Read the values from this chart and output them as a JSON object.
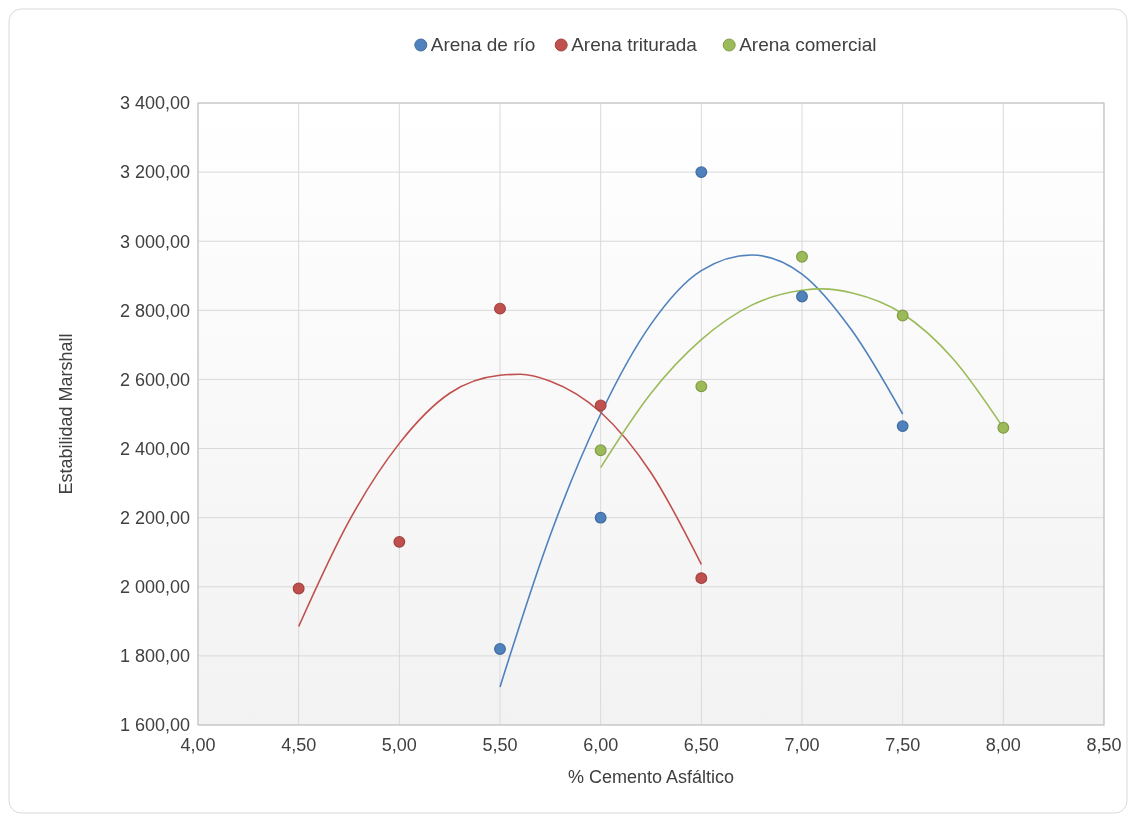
{
  "chart_data": {
    "type": "scatter",
    "xlabel": "% Cemento Asfáltico",
    "ylabel": "Estabilidad Marshall",
    "legend": "top",
    "grid": true,
    "marker": "circle",
    "xlim": [
      4,
      8.5
    ],
    "xticks": [
      {
        "value": 4,
        "label": "4,00"
      },
      {
        "value": 4.5,
        "label": "4,50"
      },
      {
        "value": 5,
        "label": "5,00"
      },
      {
        "value": 5.5,
        "label": "5,50"
      },
      {
        "value": 6,
        "label": "6,00"
      },
      {
        "value": 6.5,
        "label": "6,50"
      },
      {
        "value": 7,
        "label": "7,00"
      },
      {
        "value": 7.5,
        "label": "7,50"
      },
      {
        "value": 8,
        "label": "8,00"
      },
      {
        "value": 8.5,
        "label": "8,50"
      }
    ],
    "ylim": [
      1600,
      3400
    ],
    "yticks": [
      {
        "value": 1600,
        "label": "1 600,00"
      },
      {
        "value": 1800,
        "label": "1 800,00"
      },
      {
        "value": 2000,
        "label": "2 000,00"
      },
      {
        "value": 2200,
        "label": "2 200,00"
      },
      {
        "value": 2400,
        "label": "2 400,00"
      },
      {
        "value": 2600,
        "label": "2 600,00"
      },
      {
        "value": 2800,
        "label": "2 800,00"
      },
      {
        "value": 3000,
        "label": "3 000,00"
      },
      {
        "value": 3200,
        "label": "3 200,00"
      },
      {
        "value": 3400,
        "label": "3 400,00"
      }
    ],
    "series": [
      {
        "name": "Arena de río",
        "color": "#4f81bd",
        "x": [
          5.5,
          6,
          6.5,
          7,
          7.5
        ],
        "values": [
          1820,
          2200,
          3200,
          2840,
          2465
        ]
      },
      {
        "name": "Arena triturada",
        "color": "#c0504d",
        "x": [
          4.5,
          5,
          5.5,
          6,
          6.5
        ],
        "values": [
          1995,
          2130,
          2805,
          2525,
          2025
        ]
      },
      {
        "name": "Arena comercial",
        "color": "#9bbb59",
        "x": [
          6,
          6.5,
          7,
          7.5,
          8
        ],
        "values": [
          2395,
          2580,
          2955,
          2785,
          2460
        ]
      },
      {
        "type": "line",
        "marker": "none",
        "color": "#4f81bd",
        "x": [
          5.5,
          5.75,
          6,
          6.25,
          6.5,
          6.75,
          7,
          7.25,
          7.5
        ],
        "values": [
          1710,
          2150,
          2500,
          2760,
          2915,
          2960,
          2905,
          2740,
          2500
        ]
      },
      {
        "type": "line",
        "marker": "none",
        "color": "#c0504d",
        "x": [
          4.5,
          4.75,
          5,
          5.25,
          5.5,
          5.6,
          5.75,
          6,
          6.25,
          6.5
        ],
        "values": [
          1885,
          2190,
          2415,
          2560,
          2612,
          2615,
          2595,
          2505,
          2330,
          2065
        ]
      },
      {
        "type": "line",
        "marker": "none",
        "color": "#9bbb59",
        "x": [
          6,
          6.25,
          6.5,
          6.75,
          7,
          7.1,
          7.25,
          7.5,
          7.75,
          8
        ],
        "values": [
          2345,
          2560,
          2715,
          2815,
          2858,
          2862,
          2850,
          2790,
          2660,
          2460
        ]
      }
    ]
  }
}
